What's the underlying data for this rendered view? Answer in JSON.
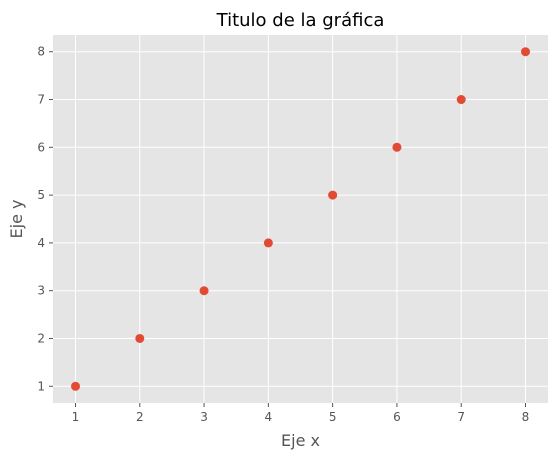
{
  "chart_data": {
    "type": "scatter",
    "title": "Titulo de la gráfica",
    "xlabel": "Eje x",
    "ylabel": "Eje y",
    "x": [
      1,
      2,
      3,
      4,
      5,
      6,
      7,
      8
    ],
    "y": [
      1,
      2,
      3,
      4,
      5,
      6,
      7,
      8
    ],
    "xticks": [
      1,
      2,
      3,
      4,
      5,
      6,
      7,
      8
    ],
    "yticks": [
      1,
      2,
      3,
      4,
      5,
      6,
      7,
      8
    ],
    "xlim": [
      0.65,
      8.35
    ],
    "ylim": [
      0.65,
      8.35
    ],
    "grid": true,
    "style": "ggplot",
    "colors": {
      "marker": "#E24A33",
      "plot_background": "#E5E5E5",
      "grid": "#FFFFFF",
      "tick_text": "#555555",
      "title_text": "#000000"
    }
  }
}
